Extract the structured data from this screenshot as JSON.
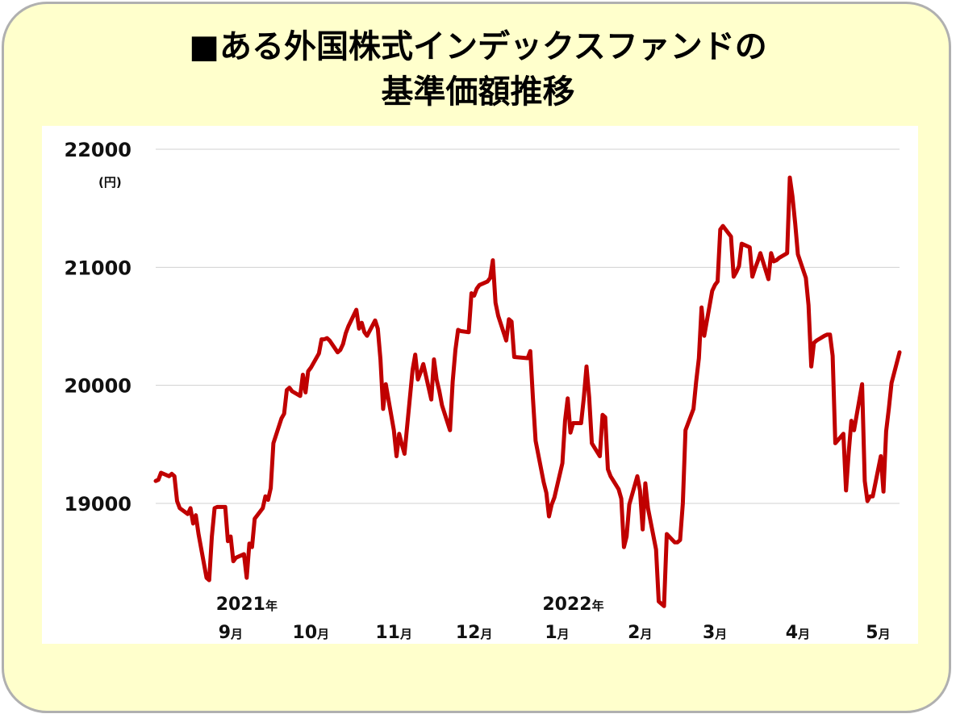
{
  "title": {
    "line1": "■ある外国株式インデックスファンドの",
    "line2": "基準価額推移"
  },
  "chart_data": {
    "type": "line",
    "title": "■ある外国株式インデックスファンドの基準価額推移",
    "ylabel": "(円)",
    "ylim": [
      18000,
      22000
    ],
    "yticks": [
      19000,
      20000,
      21000,
      22000
    ],
    "grid": true,
    "legend": "none",
    "color": "#c00000",
    "x_tick_labels": [
      {
        "x": "2021-09-01",
        "year": "2021",
        "month": "9",
        "year_suffix": "年",
        "month_suffix": "月"
      },
      {
        "x": "2021-10-01",
        "year": "",
        "month": "10",
        "year_suffix": "",
        "month_suffix": "月"
      },
      {
        "x": "2021-11-01",
        "year": "",
        "month": "11",
        "year_suffix": "",
        "month_suffix": "月"
      },
      {
        "x": "2021-12-01",
        "year": "",
        "month": "12",
        "year_suffix": "",
        "month_suffix": "月"
      },
      {
        "x": "2022-01-01",
        "year": "2022",
        "month": "1",
        "year_suffix": "年",
        "month_suffix": "月"
      },
      {
        "x": "2022-02-01",
        "year": "",
        "month": "2",
        "year_suffix": "",
        "month_suffix": "月"
      },
      {
        "x": "2022-03-01",
        "year": "",
        "month": "3",
        "year_suffix": "",
        "month_suffix": "月"
      },
      {
        "x": "2022-04-01",
        "year": "",
        "month": "4",
        "year_suffix": "",
        "month_suffix": "月"
      },
      {
        "x": "2022-05-01",
        "year": "",
        "month": "5",
        "year_suffix": "",
        "month_suffix": "月"
      }
    ],
    "series": [
      {
        "points": [
          [
            "2021-08-18",
            19190
          ],
          [
            "2021-08-19",
            19200
          ],
          [
            "2021-08-20",
            19260
          ],
          [
            "2021-08-23",
            19230
          ],
          [
            "2021-08-24",
            19250
          ],
          [
            "2021-08-25",
            19230
          ],
          [
            "2021-08-26",
            19020
          ],
          [
            "2021-08-27",
            18960
          ],
          [
            "2021-08-30",
            18910
          ],
          [
            "2021-08-31",
            18960
          ],
          [
            "2021-09-01",
            18830
          ],
          [
            "2021-09-02",
            18900
          ],
          [
            "2021-09-03",
            18740
          ],
          [
            "2021-09-06",
            18370
          ],
          [
            "2021-09-07",
            18350
          ],
          [
            "2021-09-08",
            18720
          ],
          [
            "2021-09-09",
            18960
          ],
          [
            "2021-09-10",
            18970
          ],
          [
            "2021-09-13",
            18970
          ],
          [
            "2021-09-14",
            18680
          ],
          [
            "2021-09-15",
            18720
          ],
          [
            "2021-09-16",
            18510
          ],
          [
            "2021-09-17",
            18540
          ],
          [
            "2021-09-20",
            18570
          ],
          [
            "2021-09-21",
            18370
          ],
          [
            "2021-09-22",
            18660
          ],
          [
            "2021-09-23",
            18630
          ],
          [
            "2021-09-24",
            18870
          ],
          [
            "2021-09-27",
            18960
          ],
          [
            "2021-09-28",
            19060
          ],
          [
            "2021-09-29",
            19030
          ],
          [
            "2021-09-30",
            19130
          ],
          [
            "2021-10-01",
            19510
          ],
          [
            "2021-10-04",
            19720
          ],
          [
            "2021-10-05",
            19760
          ],
          [
            "2021-10-06",
            19960
          ],
          [
            "2021-10-07",
            19980
          ],
          [
            "2021-10-08",
            19950
          ],
          [
            "2021-10-11",
            19910
          ],
          [
            "2021-10-12",
            20090
          ],
          [
            "2021-10-13",
            19940
          ],
          [
            "2021-10-14",
            20120
          ],
          [
            "2021-10-15",
            20150
          ],
          [
            "2021-10-18",
            20270
          ],
          [
            "2021-10-19",
            20390
          ],
          [
            "2021-10-20",
            20390
          ],
          [
            "2021-10-21",
            20400
          ],
          [
            "2021-10-22",
            20380
          ],
          [
            "2021-10-25",
            20280
          ],
          [
            "2021-10-26",
            20300
          ],
          [
            "2021-10-27",
            20350
          ],
          [
            "2021-10-28",
            20440
          ],
          [
            "2021-10-29",
            20500
          ],
          [
            "2021-11-01",
            20640
          ],
          [
            "2021-11-02",
            20480
          ],
          [
            "2021-11-03",
            20530
          ],
          [
            "2021-11-04",
            20450
          ],
          [
            "2021-11-05",
            20420
          ],
          [
            "2021-11-08",
            20550
          ],
          [
            "2021-11-09",
            20480
          ],
          [
            "2021-11-10",
            20220
          ],
          [
            "2021-11-11",
            19800
          ],
          [
            "2021-11-12",
            20010
          ],
          [
            "2021-11-15",
            19620
          ],
          [
            "2021-11-16",
            19400
          ],
          [
            "2021-11-17",
            19590
          ],
          [
            "2021-11-18",
            19500
          ],
          [
            "2021-11-19",
            19420
          ],
          [
            "2021-11-22",
            20130
          ],
          [
            "2021-11-23",
            20260
          ],
          [
            "2021-11-24",
            20050
          ],
          [
            "2021-11-25",
            20110
          ],
          [
            "2021-11-26",
            20180
          ],
          [
            "2021-11-29",
            19880
          ],
          [
            "2021-11-30",
            20220
          ],
          [
            "2021-12-01",
            20050
          ],
          [
            "2021-12-02",
            19950
          ],
          [
            "2021-12-03",
            19830
          ],
          [
            "2021-12-06",
            19620
          ],
          [
            "2021-12-07",
            20030
          ],
          [
            "2021-12-08",
            20300
          ],
          [
            "2021-12-09",
            20470
          ],
          [
            "2021-12-10",
            20460
          ],
          [
            "2021-12-13",
            20450
          ],
          [
            "2021-12-14",
            20780
          ],
          [
            "2021-12-15",
            20760
          ],
          [
            "2021-12-16",
            20820
          ],
          [
            "2021-12-17",
            20850
          ],
          [
            "2021-12-20",
            20880
          ],
          [
            "2021-12-21",
            20910
          ],
          [
            "2021-12-22",
            21060
          ],
          [
            "2021-12-23",
            20700
          ],
          [
            "2021-12-24",
            20590
          ],
          [
            "2021-12-27",
            20380
          ],
          [
            "2021-12-28",
            20560
          ],
          [
            "2021-12-29",
            20540
          ],
          [
            "2021-12-30",
            20240
          ],
          [
            "2022-01-04",
            20230
          ],
          [
            "2022-01-05",
            20290
          ],
          [
            "2022-01-06",
            19890
          ],
          [
            "2022-01-07",
            19530
          ],
          [
            "2022-01-10",
            19180
          ],
          [
            "2022-01-11",
            19090
          ],
          [
            "2022-01-12",
            18890
          ],
          [
            "2022-01-13",
            18990
          ],
          [
            "2022-01-14",
            19050
          ],
          [
            "2022-01-17",
            19340
          ],
          [
            "2022-01-18",
            19700
          ],
          [
            "2022-01-19",
            19890
          ],
          [
            "2022-01-20",
            19600
          ],
          [
            "2022-01-21",
            19680
          ],
          [
            "2022-01-24",
            19680
          ],
          [
            "2022-01-25",
            19890
          ],
          [
            "2022-01-26",
            20160
          ],
          [
            "2022-01-27",
            19900
          ],
          [
            "2022-01-28",
            19510
          ],
          [
            "2022-01-31",
            19400
          ],
          [
            "2022-02-01",
            19750
          ],
          [
            "2022-02-02",
            19730
          ],
          [
            "2022-02-03",
            19290
          ],
          [
            "2022-02-04",
            19230
          ],
          [
            "2022-02-07",
            19120
          ],
          [
            "2022-02-08",
            19040
          ],
          [
            "2022-02-09",
            18630
          ],
          [
            "2022-02-10",
            18720
          ],
          [
            "2022-02-11",
            18990
          ],
          [
            "2022-02-14",
            19230
          ],
          [
            "2022-02-15",
            19110
          ],
          [
            "2022-02-16",
            18780
          ],
          [
            "2022-02-17",
            19170
          ],
          [
            "2022-02-18",
            18960
          ],
          [
            "2022-02-21",
            18610
          ],
          [
            "2022-02-22",
            18170
          ],
          [
            "2022-02-24",
            18130
          ],
          [
            "2022-02-25",
            18740
          ],
          [
            "2022-02-28",
            18670
          ],
          [
            "2022-03-01",
            18670
          ],
          [
            "2022-03-02",
            18690
          ],
          [
            "2022-03-03",
            19000
          ],
          [
            "2022-03-04",
            19620
          ],
          [
            "2022-03-07",
            19800
          ],
          [
            "2022-03-08",
            20030
          ],
          [
            "2022-03-09",
            20230
          ],
          [
            "2022-03-10",
            20660
          ],
          [
            "2022-03-11",
            20420
          ],
          [
            "2022-03-14",
            20800
          ],
          [
            "2022-03-15",
            20850
          ],
          [
            "2022-03-16",
            20880
          ],
          [
            "2022-03-17",
            21320
          ],
          [
            "2022-03-18",
            21350
          ],
          [
            "2022-03-21",
            21260
          ],
          [
            "2022-03-22",
            20920
          ],
          [
            "2022-03-23",
            20960
          ],
          [
            "2022-03-24",
            21010
          ],
          [
            "2022-03-25",
            21200
          ],
          [
            "2022-03-28",
            21170
          ],
          [
            "2022-03-29",
            20920
          ],
          [
            "2022-03-30",
            20990
          ],
          [
            "2022-03-31",
            21050
          ],
          [
            "2022-04-01",
            21120
          ],
          [
            "2022-04-04",
            20900
          ],
          [
            "2022-04-05",
            21120
          ],
          [
            "2022-04-06",
            21050
          ],
          [
            "2022-04-07",
            21060
          ],
          [
            "2022-04-08",
            21080
          ],
          [
            "2022-04-11",
            21120
          ],
          [
            "2022-04-12",
            21760
          ],
          [
            "2022-04-13",
            21600
          ],
          [
            "2022-04-14",
            21370
          ],
          [
            "2022-04-15",
            21110
          ],
          [
            "2022-04-18",
            20910
          ],
          [
            "2022-04-19",
            20680
          ],
          [
            "2022-04-20",
            20160
          ],
          [
            "2022-04-21",
            20360
          ],
          [
            "2022-04-22",
            20380
          ],
          [
            "2022-04-25",
            20420
          ],
          [
            "2022-04-26",
            20430
          ],
          [
            "2022-04-27",
            20430
          ],
          [
            "2022-04-28",
            20250
          ],
          [
            "2022-04-29",
            19510
          ],
          [
            "2022-05-02",
            19590
          ],
          [
            "2022-05-03",
            19110
          ],
          [
            "2022-05-04",
            19430
          ],
          [
            "2022-05-05",
            19700
          ],
          [
            "2022-05-06",
            19620
          ],
          [
            "2022-05-09",
            20010
          ],
          [
            "2022-05-10",
            19190
          ],
          [
            "2022-05-11",
            19020
          ],
          [
            "2022-05-12",
            19060
          ],
          [
            "2022-05-13",
            19060
          ],
          [
            "2022-05-16",
            19400
          ],
          [
            "2022-05-17",
            19100
          ],
          [
            "2022-05-18",
            19610
          ],
          [
            "2022-05-19",
            19800
          ],
          [
            "2022-05-20",
            20020
          ],
          [
            "2022-05-23",
            20280
          ]
        ]
      }
    ]
  }
}
